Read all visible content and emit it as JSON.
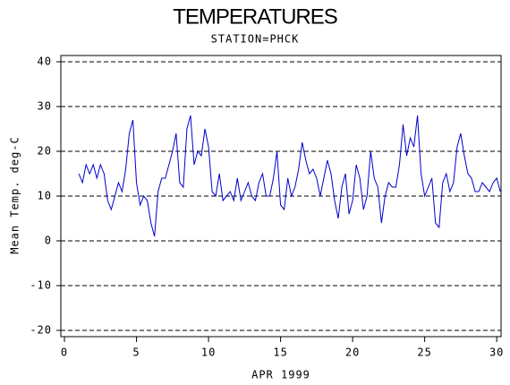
{
  "chart_data": {
    "type": "line",
    "title": "TEMPERATURES",
    "subtitle": "STATION=PHCK",
    "x_label": "APR 1999",
    "y_label": "Mean Temp. deg-C",
    "xlim": [
      -0.25,
      30.3
    ],
    "ylim": [
      -21.4,
      41.4
    ],
    "xticks": [
      0,
      5,
      10,
      15,
      20,
      25,
      30
    ],
    "yticks": [
      -20,
      -10,
      0,
      10,
      20,
      30,
      40
    ],
    "grid": true,
    "x": [
      1.0,
      1.25,
      1.5,
      1.75,
      2.0,
      2.25,
      2.5,
      2.75,
      3.0,
      3.25,
      3.5,
      3.75,
      4.0,
      4.25,
      4.5,
      4.75,
      5.0,
      5.25,
      5.5,
      5.75,
      6.0,
      6.25,
      6.5,
      6.75,
      7.0,
      7.25,
      7.5,
      7.75,
      8.0,
      8.25,
      8.5,
      8.75,
      9.0,
      9.25,
      9.5,
      9.75,
      10.0,
      10.25,
      10.5,
      10.75,
      11.0,
      11.25,
      11.5,
      11.75,
      12.0,
      12.25,
      12.5,
      12.75,
      13.0,
      13.25,
      13.5,
      13.75,
      14.0,
      14.25,
      14.5,
      14.75,
      15.0,
      15.25,
      15.5,
      15.75,
      16.0,
      16.25,
      16.5,
      16.75,
      17.0,
      17.25,
      17.5,
      17.75,
      18.0,
      18.25,
      18.5,
      18.75,
      19.0,
      19.25,
      19.5,
      19.75,
      20.0,
      20.25,
      20.5,
      20.75,
      21.0,
      21.25,
      21.5,
      21.75,
      22.0,
      22.25,
      22.5,
      22.75,
      23.0,
      23.25,
      23.5,
      23.75,
      24.0,
      24.25,
      24.5,
      24.75,
      25.0,
      25.25,
      25.5,
      25.75,
      26.0,
      26.25,
      26.5,
      26.75,
      27.0,
      27.25,
      27.5,
      27.75,
      28.0,
      28.25,
      28.5,
      28.75,
      29.0,
      29.25,
      29.5,
      29.75,
      30.0,
      30.25
    ],
    "series": [
      {
        "name": "Mean Temp.",
        "color": "#0000cc",
        "values": [
          15,
          13,
          17,
          15,
          17,
          14,
          17,
          15,
          9,
          7,
          10,
          13,
          11,
          16,
          24,
          27,
          13,
          8,
          10,
          9,
          4,
          1,
          11,
          14,
          14,
          17,
          20,
          24,
          13,
          12,
          25,
          28,
          17,
          20,
          19,
          25,
          21,
          11,
          10,
          15,
          9,
          10,
          11,
          9,
          14,
          9,
          11,
          13,
          10,
          9,
          13,
          15,
          10,
          10,
          14,
          20,
          8,
          7,
          14,
          10,
          12,
          16,
          22,
          18,
          15,
          16,
          14,
          10,
          14,
          18,
          15,
          9,
          5,
          12,
          15,
          6,
          9,
          17,
          14,
          7,
          10,
          20,
          14,
          12,
          4,
          10,
          13,
          12,
          12,
          17,
          26,
          19,
          23,
          21,
          28,
          15,
          10,
          12,
          14,
          4,
          3,
          13,
          15,
          11,
          13,
          21,
          24,
          19,
          15,
          14,
          11,
          11,
          13,
          12,
          11,
          13,
          14,
          11
        ]
      }
    ]
  }
}
